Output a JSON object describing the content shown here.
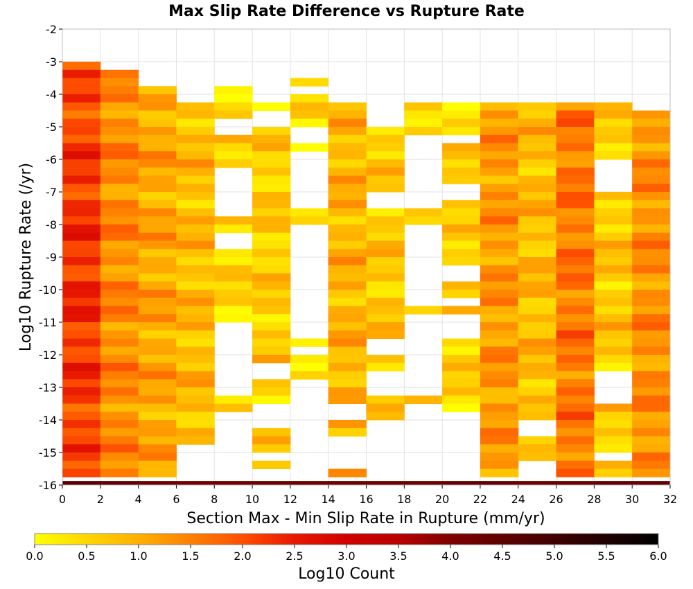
{
  "chart_data": {
    "type": "heatmap",
    "title": "Max Slip Rate Difference vs Rupture Rate",
    "xlabel": "Section Max - Min Slip Rate in Rupture (mm/yr)",
    "ylabel": "Log10 Rupture Rate (/yr)",
    "xlim": [
      0,
      32
    ],
    "ylim": [
      -16,
      -2
    ],
    "x_ticks": [
      "0",
      "2",
      "4",
      "6",
      "8",
      "10",
      "12",
      "14",
      "16",
      "18",
      "20",
      "22",
      "24",
      "26",
      "28",
      "30",
      "32"
    ],
    "y_ticks": [
      "-2",
      "-3",
      "-4",
      "-5",
      "-6",
      "-7",
      "-8",
      "-9",
      "-10",
      "-11",
      "-12",
      "-13",
      "-14",
      "-15",
      "-16"
    ],
    "x_bin_width": 2,
    "y_bin_height": 0.25,
    "grid": true,
    "colorbar": {
      "label": "Log10 Count",
      "range": [
        0,
        6
      ],
      "ticks": [
        "0.0",
        "0.5",
        "1.0",
        "1.5",
        "2.0",
        "2.5",
        "3.0",
        "3.5",
        "4.0",
        "4.5",
        "5.0",
        "5.5",
        "6.0"
      ],
      "colors": [
        "#ffff00",
        "#ffd700",
        "#ffb000",
        "#ff8000",
        "#ff5000",
        "#e81800",
        "#b80000",
        "#800000",
        "#400000",
        "#000000"
      ]
    },
    "columns": [
      {
        "x_start": 0,
        "y_top": -3.0,
        "base": 1.95,
        "bottom_row": 4.6,
        "gaps": []
      },
      {
        "x_start": 2,
        "y_top": -3.25,
        "base": 1.4,
        "bottom_row": 4.4,
        "gaps": []
      },
      {
        "x_start": 4,
        "y_top": -3.75,
        "base": 1.1,
        "bottom_row": 4.3,
        "gaps": []
      },
      {
        "x_start": 6,
        "y_top": -4.25,
        "base": 0.85,
        "bottom_row": 4.2,
        "gaps": [
          [
            -15.75,
            -14.75
          ]
        ]
      },
      {
        "x_start": 8,
        "y_top": -3.75,
        "base": 0.5,
        "bottom_row": 4.2,
        "gaps": [
          [
            -5.0,
            -4.75
          ],
          [
            -7.5,
            -6.25
          ],
          [
            -8.5,
            -8.25
          ],
          [
            -11.25,
            -11.0
          ],
          [
            -12.25,
            -11.5
          ],
          [
            -13.0,
            -12.5
          ],
          [
            -15.75,
            -13.75
          ]
        ]
      },
      {
        "x_start": 10,
        "y_top": -4.25,
        "base": 0.65,
        "bottom_row": 4.3,
        "gaps": [
          [
            -4.75,
            -4.5
          ],
          [
            -12.5,
            -12.25
          ],
          [
            -14.0,
            -13.5
          ],
          [
            -15.0,
            -15.0
          ],
          [
            -15.75,
            -15.5
          ]
        ]
      },
      {
        "x_start": 12,
        "y_top": -3.5,
        "base": 0.45,
        "bottom_row": 4.3,
        "gaps": [
          [
            -3.75,
            -3.75
          ],
          [
            -5.25,
            -5.0
          ],
          [
            -5.75,
            -5.75
          ],
          [
            -7.25,
            -5.75
          ],
          [
            -8.75,
            -8.0
          ],
          [
            -10.0,
            -9.0
          ],
          [
            -11.25,
            -10.25
          ],
          [
            -11.75,
            -11.75
          ],
          [
            -12.75,
            -12.75
          ],
          [
            -15.75,
            -12.75
          ]
        ]
      },
      {
        "x_start": 14,
        "y_top": -4.25,
        "base": 0.95,
        "bottom_row": 4.3,
        "gaps": [
          [
            -13.75,
            -13.5
          ],
          [
            -14.75,
            -14.5
          ],
          [
            -15.25,
            -15.0
          ]
        ]
      },
      {
        "x_start": 16,
        "y_top": -4.25,
        "base": 0.7,
        "bottom_row": 4.3,
        "gaps": [
          [
            -4.75,
            -4.25
          ],
          [
            -7.25,
            -7.0
          ],
          [
            -11.75,
            -11.5
          ],
          [
            -13.0,
            -12.5
          ],
          [
            -15.5,
            -14.0
          ]
        ]
      },
      {
        "x_start": 18,
        "y_top": -4.25,
        "base": 0.55,
        "bottom_row": 4.3,
        "gaps": [
          [
            -7.25,
            -5.25
          ],
          [
            -9.25,
            -8.0
          ],
          [
            -9.75,
            -9.5
          ],
          [
            -10.25,
            -10.0
          ],
          [
            -13.0,
            -10.75
          ],
          [
            -15.75,
            -13.5
          ]
        ]
      },
      {
        "x_start": 20,
        "y_top": -4.25,
        "base": 0.55,
        "bottom_row": 4.4,
        "gaps": [
          [
            -5.25,
            -5.25
          ],
          [
            -7.0,
            -6.75
          ],
          [
            -9.5,
            -9.25
          ],
          [
            -10.25,
            -10.25
          ],
          [
            -10.75,
            -10.75
          ],
          [
            -11.25,
            -11.0
          ],
          [
            -15.75,
            -13.75
          ]
        ]
      },
      {
        "x_start": 22,
        "y_top": -4.25,
        "base": 1.25,
        "bottom_row": 4.4,
        "gaps": []
      },
      {
        "x_start": 24,
        "y_top": -4.25,
        "base": 0.85,
        "bottom_row": 4.3,
        "gaps": [
          [
            -14.25,
            -14.0
          ],
          [
            -15.5,
            -15.25
          ]
        ]
      },
      {
        "x_start": 26,
        "y_top": -4.25,
        "base": 1.6,
        "bottom_row": 4.3,
        "gaps": []
      },
      {
        "x_start": 28,
        "y_top": -4.25,
        "base": 0.7,
        "bottom_row": 4.4,
        "gaps": [
          [
            -6.25,
            -6.0
          ],
          [
            -6.75,
            -6.5
          ],
          [
            -13.25,
            -12.5
          ],
          [
            -15.0,
            -15.0
          ],
          [
            -15.75,
            -15.75
          ]
        ]
      },
      {
        "x_start": 30,
        "y_top": -4.5,
        "base": 1.35,
        "bottom_row": 4.4,
        "gaps": []
      }
    ]
  }
}
